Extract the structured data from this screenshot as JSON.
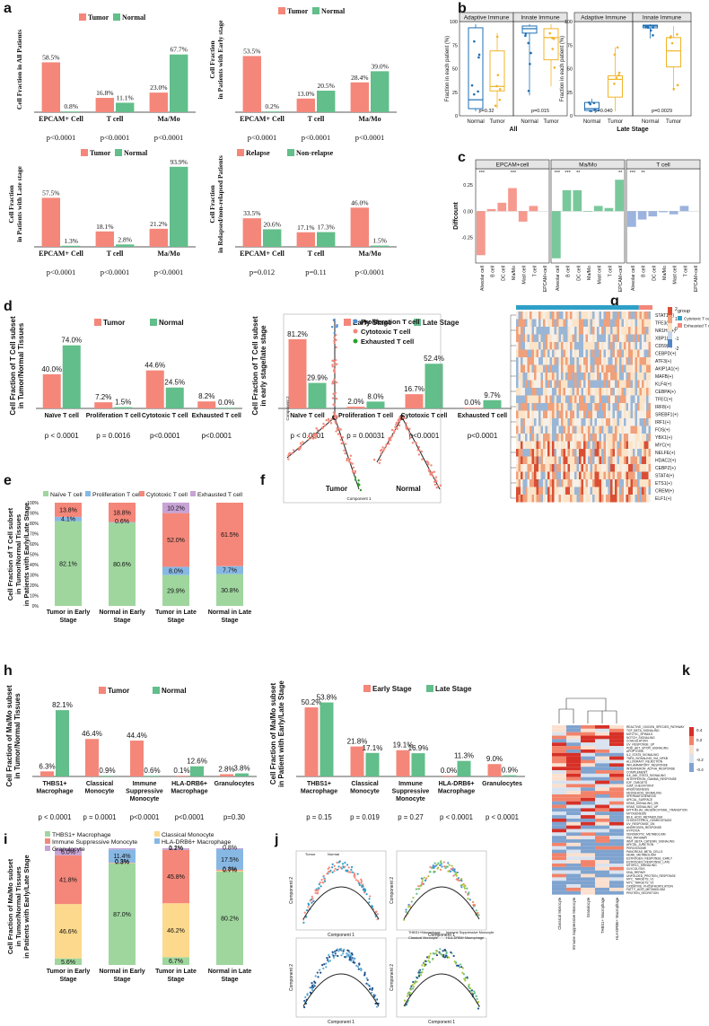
{
  "colors": {
    "tumor": "#f4877a",
    "normal": "#62be8a",
    "adaptive": "#1f6fb4",
    "innate_tumor": "#f0b429",
    "naive": "#9fd69e",
    "prolif": "#87b8e4",
    "cytotoxic": "#f4877a",
    "exhausted": "#c7a3d6",
    "thbs1": "#9fd69e",
    "classical": "#fcd98c",
    "immune": "#f4877a",
    "hla": "#87b8e4",
    "gran": "#c7a3d6"
  },
  "labels": {
    "a": "a",
    "b": "b",
    "c": "c",
    "d": "d",
    "e": "e",
    "f": "f",
    "g": "g",
    "h": "h",
    "i": "i",
    "j": "j",
    "k": "k"
  },
  "chart_data": [
    {
      "id": "a1",
      "type": "bar",
      "ylabel": "Cell Fraction in All Patients",
      "legend": [
        "Tumor",
        "Normal"
      ],
      "categories": [
        "EPCAM+ Cell",
        "T cell",
        "Ma/Mo"
      ],
      "series": [
        {
          "name": "Tumor",
          "values": [
            58.5,
            16.8,
            23.0
          ],
          "labels": [
            "58.5%",
            "16.8%",
            "23.0%"
          ]
        },
        {
          "name": "Normal",
          "values": [
            0.8,
            11.1,
            67.7
          ],
          "labels": [
            "0.8%",
            "11.1%",
            "67.7%"
          ]
        }
      ],
      "pvalues": [
        "p<0.0001",
        "p<0.0001",
        "p<0.0001"
      ]
    },
    {
      "id": "a2",
      "type": "bar",
      "ylabel": "Cell Fraction in Patients with Early stage",
      "legend": [
        "Tumor",
        "Normal"
      ],
      "categories": [
        "EPCAM+ Cell",
        "T cell",
        "Ma/Mo"
      ],
      "series": [
        {
          "name": "Tumor",
          "values": [
            53.5,
            13.0,
            28.4
          ],
          "labels": [
            "53.5%",
            "13.0%",
            "28.4%"
          ]
        },
        {
          "name": "Normal",
          "values": [
            0.2,
            20.5,
            39.0
          ],
          "labels": [
            "0.2%",
            "20.5%",
            "39.0%"
          ]
        }
      ],
      "pvalues": [
        "p<0.0001",
        "p<0.0001",
        "p<0.0001"
      ]
    },
    {
      "id": "a3",
      "type": "bar",
      "ylabel": "Cell Fraction in Patients with Late stage",
      "legend": [
        "Tumor",
        "Normal"
      ],
      "categories": [
        "EPCAM+ Cell",
        "T cell",
        "Ma/Mo"
      ],
      "series": [
        {
          "name": "Tumor",
          "values": [
            57.5,
            18.1,
            21.2
          ],
          "labels": [
            "57.5%",
            "18.1%",
            "21.2%"
          ]
        },
        {
          "name": "Normal",
          "values": [
            1.3,
            2.8,
            93.9
          ],
          "labels": [
            "1.3%",
            "2.8%",
            "93.9%"
          ]
        }
      ],
      "pvalues": [
        "p<0.0001",
        "p<0.0001",
        "p<0.0001"
      ]
    },
    {
      "id": "a4",
      "type": "bar",
      "ylabel": "Cell Fraction in Relapsed/non-relapsed Patients",
      "legend": [
        "Relapse",
        "Non-relapse"
      ],
      "categories": [
        "EPCAM+ Cell",
        "T cell",
        "Ma/Mo"
      ],
      "series": [
        {
          "name": "Relapse",
          "values": [
            33.5,
            17.1,
            46.0
          ],
          "labels": [
            "33.5%",
            "17.1%",
            "46.0%"
          ]
        },
        {
          "name": "Non-relapse",
          "values": [
            20.6,
            17.3,
            1.5
          ],
          "labels": [
            "20.6%",
            "17.3%",
            "1.5%"
          ]
        }
      ],
      "pvalues": [
        "p=0.012",
        "p=0.11",
        "p<0.0001"
      ]
    },
    {
      "id": "b",
      "type": "box",
      "ylabel": "Fraction in each patient (%)",
      "groups": [
        {
          "title": "All",
          "panels": [
            "Adaptive Immune",
            "Innate Immune"
          ],
          "categories": [
            "Normal",
            "Tumor",
            "Normal",
            "Tumor"
          ],
          "pvalues": [
            "p=0.32",
            "p=0.015"
          ],
          "boxes": [
            {
              "min": 2,
              "q1": 5,
              "med": 15,
              "q3": 96,
              "max": 100
            },
            {
              "min": 5,
              "q1": 25,
              "med": 30,
              "q3": 70,
              "max": 90
            },
            {
              "min": 20,
              "q1": 90,
              "med": 95,
              "q3": 98,
              "max": 100
            },
            {
              "min": 30,
              "q1": 60,
              "med": 85,
              "q3": 95,
              "max": 100
            }
          ]
        },
        {
          "title": "Late Stage",
          "panels": [
            "Adaptive Immune",
            "Innate Immune"
          ],
          "categories": [
            "Normal",
            "Tumor",
            "Normal",
            "Tumor"
          ],
          "pvalues": [
            "p=0.040",
            "p=0.0029"
          ],
          "boxes": [
            {
              "min": 1,
              "q1": 3,
              "med": 5,
              "q3": 12,
              "max": 16
            },
            {
              "min": 2,
              "q1": 18,
              "med": 38,
              "q3": 42,
              "max": 74
            },
            {
              "min": 84,
              "q1": 96,
              "med": 98,
              "q3": 99,
              "max": 100
            },
            {
              "min": 25,
              "q1": 52,
              "med": 70,
              "q3": 85,
              "max": 98
            }
          ]
        }
      ],
      "yticks": [
        "0",
        "25",
        "50",
        "75",
        "100"
      ]
    },
    {
      "id": "c",
      "type": "bar",
      "ylabel": "Diffcount",
      "panels": [
        "EPCAM+cell",
        "Ma/Mo",
        "T cell"
      ],
      "categories": [
        "Alveolar cell",
        "B cell",
        "DC cell",
        "Ma/Mo",
        "Mast cell",
        "T cell",
        "EPCAM+cell"
      ],
      "yticks": [
        "0.25",
        "0.00",
        "-0.25"
      ],
      "values": [
        [
          -0.42,
          0.02,
          0.08,
          0.22,
          -0.1,
          0.05,
          null
        ],
        [
          -0.45,
          0.2,
          0.2,
          0.0,
          0.05,
          0.03,
          0.3
        ],
        [
          -0.15,
          -0.08,
          -0.05,
          -0.01,
          -0.03,
          0.05,
          null
        ]
      ],
      "stars": [
        [
          "***",
          "",
          "",
          "***",
          "",
          "",
          ""
        ],
        [
          "***",
          "***",
          "**",
          "",
          "",
          "",
          "**"
        ],
        [
          "***",
          "**",
          "",
          "",
          "",
          "",
          ""
        ]
      ]
    },
    {
      "id": "d1",
      "type": "bar",
      "ylabel": "Cell Fraction of T Cell subset in Tumor/Normal Tissues",
      "legend": [
        "Tumor",
        "Normal"
      ],
      "categories": [
        "Naïve T cell",
        "Proliferation T cell",
        "Cytotoxic T cell",
        "Exhausted T cell"
      ],
      "series": [
        {
          "name": "Tumor",
          "values": [
            40.0,
            7.2,
            44.6,
            8.2
          ],
          "labels": [
            "40.0%",
            "7.2%",
            "44.6%",
            "8.2%"
          ]
        },
        {
          "name": "Normal",
          "values": [
            74.0,
            1.5,
            24.5,
            0.0
          ],
          "labels": [
            "74.0%",
            "1.5%",
            "24.5%",
            "0.0%"
          ]
        }
      ],
      "pvalues": [
        "p < 0.0001",
        "p = 0.0016",
        "p<0.0001",
        "p<0.0001"
      ]
    },
    {
      "id": "d2",
      "type": "bar",
      "ylabel": "Cell Fraction of T Cell subset in early stage/late stage",
      "legend": [
        "Early Stage",
        "Late Stage"
      ],
      "categories": [
        "Naïve T cell",
        "Proliferation T cell",
        "Cytotoxic T cell",
        "Exhausted T cell"
      ],
      "series": [
        {
          "name": "Early Stage",
          "values": [
            81.2,
            2.0,
            16.7,
            0.0
          ],
          "labels": [
            "81.2%",
            "2.0%",
            "16.7%",
            "0.0%"
          ]
        },
        {
          "name": "Late Stage",
          "values": [
            29.9,
            8.0,
            52.4,
            9.7
          ],
          "labels": [
            "29.9%",
            "8.0%",
            "52.4%",
            "9.7%"
          ]
        }
      ],
      "pvalues": [
        "p < 0.0001",
        "p = 0.00031",
        "p<0.0001",
        "p<0.0001"
      ]
    },
    {
      "id": "e",
      "type": "stacked-bar",
      "ylabel": "Cell Fraction of T Cell subset in Tumor/Normal Tissues in Patients with Early/Late Stage",
      "legend": [
        "Naïve T cell",
        "Proliferation T cell",
        "Cytotoxic T cell",
        "Exhausted T cell"
      ],
      "categories": [
        "Tumor in Early Stage",
        "Normal in Early Stage",
        "Tumor in Late Stage",
        "Normal in Late Stage"
      ],
      "yticks": [
        "0%",
        "10%",
        "20%",
        "30%",
        "40%",
        "50%",
        "60%",
        "70%",
        "80%",
        "90%",
        "100%"
      ],
      "values": [
        [
          82.1,
          4.1,
          13.8,
          0.0
        ],
        [
          80.6,
          0.6,
          18.8,
          0.0
        ],
        [
          29.9,
          8.0,
          52.0,
          10.2
        ],
        [
          30.8,
          7.7,
          61.5,
          0.0
        ]
      ],
      "labels": [
        [
          "82.1%",
          "4.1%",
          "13.8%",
          ""
        ],
        [
          "80.6%",
          "0.6%",
          "18.8%",
          ""
        ],
        [
          "29.9%",
          "8.0%",
          "52.0%",
          "10.2%"
        ],
        [
          "30.8%",
          "7.7%",
          "61.5%",
          ""
        ]
      ]
    },
    {
      "id": "h1",
      "type": "bar",
      "ylabel": "Cell Fraction of Ma/Mo subset in Tumor/Normal Tissues",
      "legend": [
        "Tumor",
        "Normal"
      ],
      "categories": [
        "THBS1+ Macrophage",
        "Classical Monocyte",
        "Immune Suppressive Monocyte",
        "HLA-DRB6+ Macrophage",
        "Granulocytes"
      ],
      "series": [
        {
          "name": "Tumor",
          "values": [
            6.3,
            46.4,
            44.4,
            0.1,
            2.8
          ],
          "labels": [
            "6.3%",
            "46.4%",
            "44.4%",
            "0.1%",
            "2.8%"
          ]
        },
        {
          "name": "Normal",
          "values": [
            82.1,
            0.9,
            0.6,
            12.6,
            3.8
          ],
          "labels": [
            "82.1%",
            "0.9%",
            "0.6%",
            "12.6%",
            "3.8%"
          ]
        }
      ],
      "pvalues": [
        "p < 0.0001",
        "p = 0.0001",
        "p<0.0001",
        "p<0.0001",
        "p=0.30"
      ]
    },
    {
      "id": "h2",
      "type": "bar",
      "ylabel": "Cell Fraction of Ma/Mo subset in Patient with Early/Late Stage",
      "legend": [
        "Early Stage",
        "Late Stage"
      ],
      "categories": [
        "THBS1+ Macrophage",
        "Classical Monocyte",
        "Immune Suppressive Monocyte",
        "HLA-DRB6+ Macrophage",
        "Granulocytes"
      ],
      "series": [
        {
          "name": "Early Stage",
          "values": [
            50.2,
            21.8,
            19.1,
            0.0,
            9.0
          ],
          "labels": [
            "50.2%",
            "21.8%",
            "19.1%",
            "0.0%",
            "9.0%"
          ]
        },
        {
          "name": "Late Stage",
          "values": [
            53.8,
            17.1,
            16.9,
            11.3,
            0.9
          ],
          "labels": [
            "53.8%",
            "17.1%",
            "16.9%",
            "11.3%",
            "0.9%"
          ]
        }
      ],
      "pvalues": [
        "p = 0.15",
        "p = 0.019",
        "p = 0.27",
        "p < 0.0001",
        "p < 0.0001"
      ]
    },
    {
      "id": "i",
      "type": "stacked-bar",
      "ylabel": "Cell Fraction of Ma/Mo subset in Tumor/Normal Tissues in Patients with Early/Late Stage",
      "legend": [
        "THBS1+ Macrophage",
        "Classical Monocyte",
        "Immune Suppressive Monocyte",
        "HLA-DRB6+ Macrophage",
        "Granulocyte"
      ],
      "categories": [
        "Tumor in Early Stage",
        "Normal in Early Stage",
        "Tumor in Late Stage",
        "Normal in Late Stage"
      ],
      "values": [
        [
          5.6,
          46.6,
          41.8,
          0.0,
          6.0
        ],
        [
          87.0,
          0.3,
          0.3,
          11.4,
          1.0
        ],
        [
          6.7,
          46.2,
          45.8,
          0.2,
          1.1
        ],
        [
          80.2,
          0.7,
          0.8,
          17.5,
          0.8
        ]
      ],
      "labels": [
        [
          "5.6%",
          "46.6%",
          "41.8%",
          "",
          "6.0%"
        ],
        [
          "87.0%",
          "0.3%",
          "0.3%",
          "11.4%",
          ""
        ],
        [
          "6.7%",
          "46.2%",
          "45.8%",
          "0.2%",
          "1.1%"
        ],
        [
          "80.2%",
          "0.7%",
          "0.8%",
          "17.5%",
          "0.8%"
        ]
      ]
    },
    {
      "id": "f",
      "type": "scatter",
      "legend": [
        "Proliferation T cell",
        "Cytotoxic T cell",
        "Exhausted T cell"
      ],
      "labels": [
        "Tumor",
        "Normal"
      ],
      "xlabel": "Component 1",
      "ylabel": "Component 2"
    },
    {
      "id": "g",
      "type": "heatmap",
      "legend_title": "group",
      "groups": [
        "Cytotoxic T cell",
        "Exhausted T cell"
      ],
      "scale": [
        "2",
        "1",
        "0",
        "-1",
        "-2"
      ],
      "rows": [
        "STAT1(+)",
        "TFE3(+)",
        "NR1H3(+)",
        "XBP1(+)",
        "CD59(+)",
        "CEBPD(+)",
        "ATF3(+)",
        "AKIP1A1(+)",
        "MAFB(+)",
        "KLF4(+)",
        "CEBPA(+)",
        "TFEC(+)",
        "IRF8(+)",
        "SREBF1(+)",
        "IRF1(+)",
        "FOS(+)",
        "YBX1(+)",
        "MYC(+)",
        "NELFE(+)",
        "HDAC2(+)",
        "CEBPZ(+)",
        "STAT4(+)",
        "ETS1(+)",
        "CREM(+)",
        "ELF1(+)"
      ]
    },
    {
      "id": "k",
      "type": "heatmap",
      "scale": [
        "0.4",
        "0.2",
        "0",
        "-0.2",
        "-0.4"
      ],
      "columns": [
        "Classical Monocyte",
        "Immune Suppressive Monocyte",
        "Granulocyte",
        "THBS1+ Macrophage",
        "HLA-DRB6+ Macrophage"
      ],
      "rows": [
        "REACTIVE_OXIGEN_SPECIES_PATHWAY",
        "TGF_BETA_SIGNALING",
        "MITOTIC_SPINDLE",
        "NOTCH_SIGNALING",
        "COAGULATION",
        "UV_RESPONSE_UP",
        "PI3K_AKT_MTOR_SIGNALING",
        "APOPTOSIS",
        "IL2_STAT5_SIGNALING",
        "TNFA_SIGNALING_VIA_NFKB",
        "ALLOGRAFT_REJECTION",
        "INFLAMMATORY_RESPONSE",
        "INTERFERON_ALPHA_RESPONSE",
        "COMPLEMENT",
        "IL6_JAK_STAT3_SIGNALING",
        "INTERFERON_GAMMA_RESPONSE",
        "E2F_TARGETS",
        "G2M_CHECKPOINT",
        "ANGIOGENESIS",
        "HEDGEHOG_SIGNALING",
        "SPERMATOGENESIS",
        "APICAL_SURFACE",
        "KRAS_SIGNALING_DN",
        "KRAS_SIGNALING_UP",
        "EPITHELIAL_MESENCHYMAL_TRANSITION",
        "MYOGENESIS",
        "BILE_ACID_METABOLISM",
        "CHOLESTEROL_HOMEOSTASIS",
        "UV_RESPONSE_DN",
        "ANDROGEN_RESPONSE",
        "HYPOXIA",
        "XENOBIOTIC_METABOLISM",
        "P53_PATHWAY",
        "WNT_BETA_CATENIN_SIGNALING",
        "APICAL_JUNCTION",
        "PEROXISOME",
        "PANCREAS_BETA_CELLS",
        "HEME_METABOLISM",
        "ESTROGEN_RESPONSE_EARLY",
        "ESTROGEN_RESPONSE_LATE",
        "MTORC1_SIGNALING",
        "GLYCOLYSIS",
        "DNA_REPAIR",
        "UNFOLDED_PROTEIN_RESPONSE",
        "MYC_TARGETS_V1",
        "MYC_TARGETS_V2",
        "OXIDATIVE_PHOSPHORYLATION",
        "FATTY_ACID_METABOLISM",
        "PROTEIN_SECRETION"
      ]
    },
    {
      "id": "j",
      "type": "scatter",
      "legend": [
        "THBS1+Macrophage",
        "Immune Suppressive Monocyte",
        "Classical Monocyte",
        "HLA-DRB6+Macrophage",
        "Tumor",
        "Normal"
      ],
      "xlabel": "Component 1",
      "ylabel": "Component 2"
    }
  ],
  "b_titles": {
    "all": "All",
    "late": "Late Stage",
    "adaptive": "Adaptive Immune",
    "innate": "Innate Immune"
  }
}
